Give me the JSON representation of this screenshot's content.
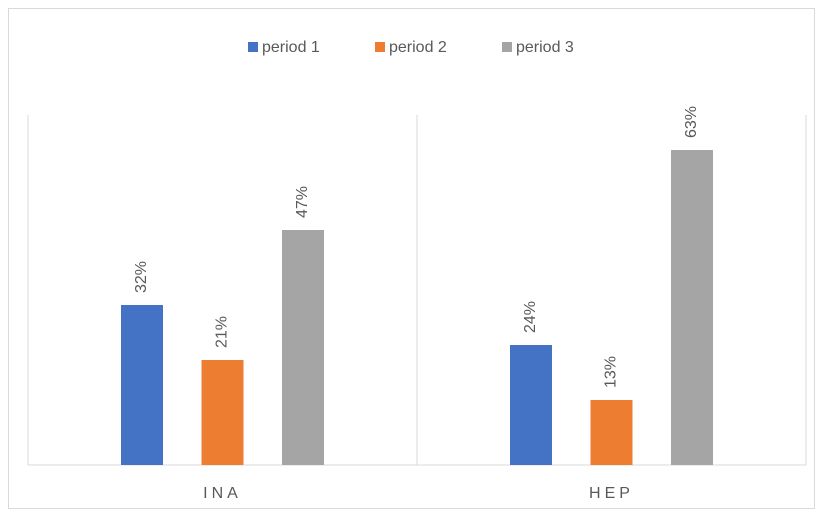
{
  "chart_data": {
    "type": "bar",
    "categories": [
      "INA",
      "HEP"
    ],
    "series": [
      {
        "name": "period 1",
        "color": "#4472c4",
        "values": [
          32,
          24
        ],
        "value_labels": [
          "32%",
          "24%"
        ]
      },
      {
        "name": "period 2",
        "color": "#ed7d31",
        "values": [
          21,
          13
        ],
        "value_labels": [
          "21%",
          "13%"
        ]
      },
      {
        "name": "period 3",
        "color": "#a5a5a5",
        "values": [
          47,
          63
        ],
        "value_labels": [
          "47%",
          "63%"
        ]
      }
    ],
    "legend": "top"
  }
}
